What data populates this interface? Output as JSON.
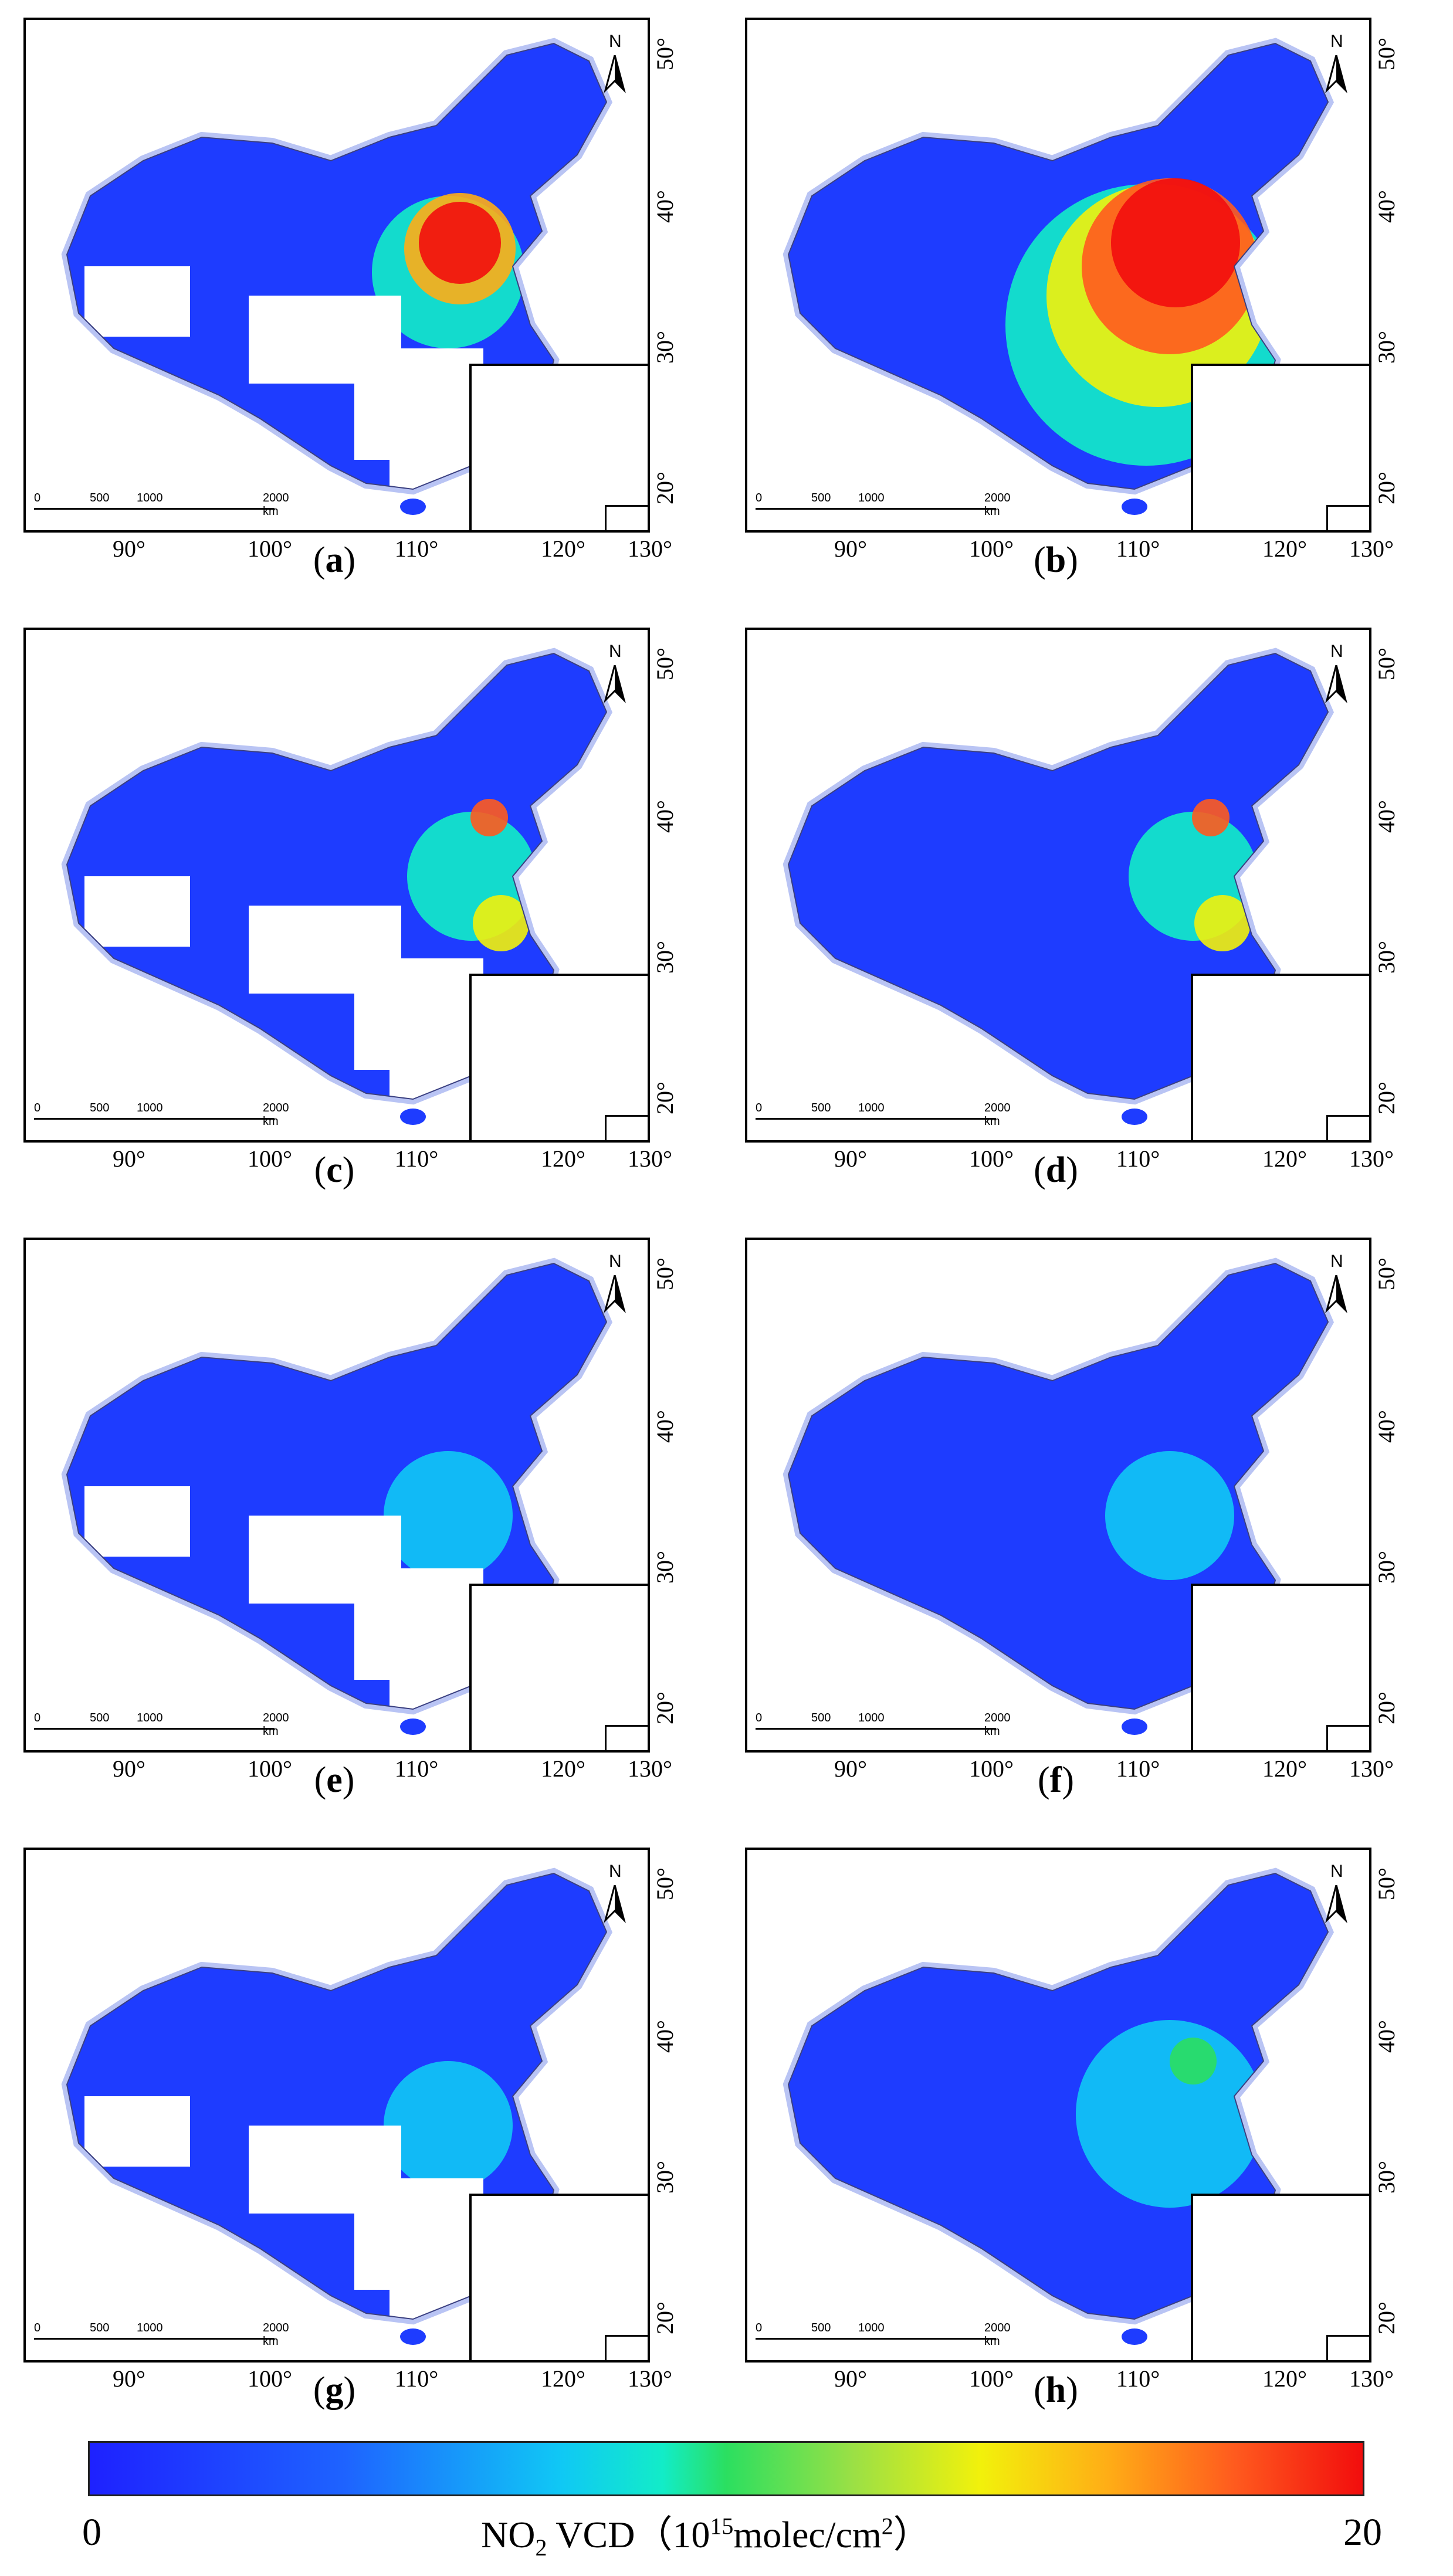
{
  "panels": [
    {
      "label": "a",
      "coverage": "partial",
      "hotspot_level": "high"
    },
    {
      "label": "b",
      "coverage": "full",
      "hotspot_level": "very-high"
    },
    {
      "label": "c",
      "coverage": "partial",
      "hotspot_level": "medium"
    },
    {
      "label": "d",
      "coverage": "full",
      "hotspot_level": "medium"
    },
    {
      "label": "e",
      "coverage": "partial",
      "hotspot_level": "low"
    },
    {
      "label": "f",
      "coverage": "full",
      "hotspot_level": "low"
    },
    {
      "label": "g",
      "coverage": "partial",
      "hotspot_level": "low"
    },
    {
      "label": "h",
      "coverage": "full",
      "hotspot_level": "low-medium"
    }
  ],
  "map": {
    "x_ticks": [
      "90°",
      "100°",
      "110°",
      "120°",
      "130°"
    ],
    "y_ticks": [
      "20°",
      "30°",
      "40°",
      "50°"
    ],
    "north_label": "N",
    "scale_labels": [
      "0",
      "500",
      "1000",
      "2000 km"
    ]
  },
  "colorbar": {
    "min_label": "0",
    "max_label": "20",
    "title_parts": {
      "a": "NO",
      "sub": "2",
      "b": " VCD（10",
      "sup": "15",
      "c": "molec/cm",
      "sup2": "2",
      "d": "）"
    },
    "colors": [
      "#1e21ff",
      "#1e63ff",
      "#10c8f5",
      "#12ecc8",
      "#2bdf60",
      "#9be045",
      "#f2f10b",
      "#ffad16",
      "#ff5a1e",
      "#f20d0d"
    ]
  }
}
